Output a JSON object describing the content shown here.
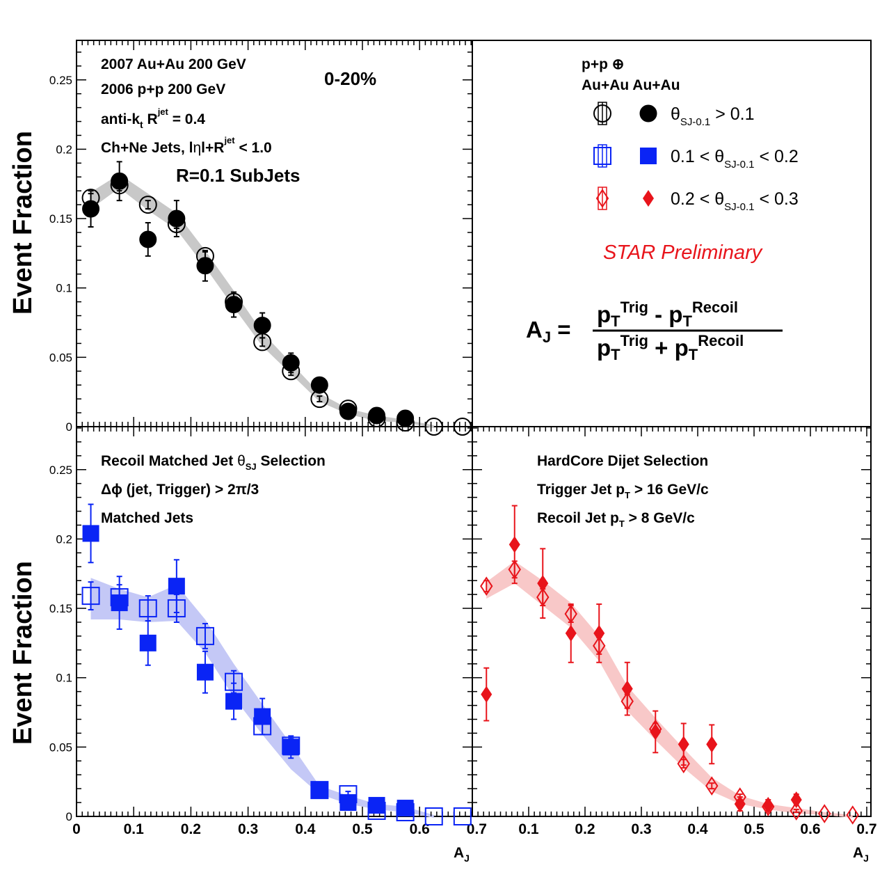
{
  "annotations": {
    "tl_line1": "2007 Au+Au 200 GeV",
    "tl_line2": "2006 p+p 200 GeV",
    "tl_centrality": "0-20%",
    "tl_line3_a": "anti-k",
    "tl_line3_sub": "t",
    "tl_line3_b": " R",
    "tl_line3_sup": "jet",
    "tl_line3_c": " = 0.4",
    "tl_line4_a": "Ch+Ne Jets, l",
    "tl_line4_eta": "η",
    "tl_line4_b": "l+R",
    "tl_line4_sup": "jet",
    "tl_line4_c": " < 1.0",
    "tl_subjets": "R=0.1 SubJets",
    "bl_line1_a": "Recoil Matched Jet  ",
    "bl_line1_theta": "θ",
    "bl_line1_sub": "SJ",
    "bl_line1_b": " Selection",
    "bl_line2": "Δϕ (jet, Trigger) > 2π/3",
    "bl_line3": "Matched Jets",
    "br_line1": "HardCore Dijet Selection",
    "br_line2_a": "Trigger Jet p",
    "br_line2_sub": "T",
    "br_line2_b": " > 16  GeV/c",
    "br_line3_a": "Recoil Jet p",
    "br_line3_sub": "T",
    "br_line3_b": " >  8  GeV/c"
  },
  "legend": {
    "head_line1": "p+p ⊕",
    "head_line2": "Au+Au Au+Au",
    "entry1_theta": "θ",
    "entry1_sub": "SJ-0.1",
    "entry1_tail": " > 0.1",
    "entry2_head": "0.1 < θ",
    "entry2_sub": "SJ-0.1",
    "entry2_tail": " < 0.2",
    "entry3_head": "0.2 < θ",
    "entry3_sub": "SJ-0.1",
    "entry3_tail": " < 0.3",
    "preliminary": "STAR Preliminary"
  },
  "formula": {
    "lhs": "A",
    "lhs_sub": "J",
    "eq": " =",
    "num_p1": "p",
    "num_sub1": "T",
    "num_sup1": "Trig",
    "num_op": " - ",
    "num_p2": "p",
    "num_sub2": "T",
    "num_sup2": "Recoil",
    "den_p1": "p",
    "den_sub1": "T",
    "den_sup1": "Trig",
    "den_op": " + ",
    "den_p2": "p",
    "den_sub2": "T",
    "den_sup2": "Recoil"
  },
  "axes": {
    "ylabel": "Event Fraction",
    "xlabel": "A",
    "xlabel_sub": "J",
    "yticks": [
      "0",
      "0.05",
      "0.1",
      "0.15",
      "0.2",
      "0.25"
    ],
    "xticks_left": [
      "0",
      "0.1",
      "0.2",
      "0.3",
      "0.4",
      "0.5",
      "0.6",
      "0.7"
    ],
    "xticks_right": [
      "0.1",
      "0.2",
      "0.3",
      "0.4",
      "0.5",
      "0.6",
      "0.7"
    ]
  },
  "colors": {
    "black": "#000000",
    "blue": "#0a24f5",
    "red": "#e8141b",
    "band_gray": "#c8c8c8",
    "band_blue": "#c4c8f6",
    "band_red": "#f8c8c8"
  },
  "chart_data": [
    {
      "type": "scatter",
      "panel": "top-left",
      "title": "",
      "xlabel": "",
      "ylabel": "Event Fraction",
      "xlim": [
        0,
        0.7
      ],
      "ylim": [
        0,
        0.28
      ],
      "color": "black",
      "band": {
        "x": [
          0.025,
          0.075,
          0.125,
          0.175,
          0.225,
          0.275,
          0.325,
          0.375,
          0.425,
          0.475,
          0.525,
          0.575,
          0.625
        ],
        "center": [
          0.163,
          0.177,
          0.162,
          0.148,
          0.121,
          0.092,
          0.063,
          0.042,
          0.021,
          0.011,
          0.006,
          0.004,
          0.0
        ],
        "half_width": [
          0.006,
          0.005,
          0.006,
          0.006,
          0.006,
          0.006,
          0.005,
          0.004,
          0.003,
          0.002,
          0.002,
          0.001,
          0.001
        ]
      },
      "series": [
        {
          "name": "p+p ⊕ Au+Au",
          "marker": "open-circle",
          "x": [
            0.025,
            0.075,
            0.125,
            0.175,
            0.225,
            0.275,
            0.325,
            0.375,
            0.425,
            0.475,
            0.525,
            0.575,
            0.625,
            0.675
          ],
          "y": [
            0.165,
            0.174,
            0.16,
            0.146,
            0.123,
            0.09,
            0.061,
            0.04,
            0.02,
            0.013,
            0.006,
            0.003,
            0.0,
            0.0
          ],
          "err": [
            0.003,
            0.004,
            0.003,
            0.003,
            0.003,
            0.003,
            0.003,
            0.003,
            0.002,
            0.002,
            0.001,
            0.001,
            0.0,
            0.0
          ]
        },
        {
          "name": "Au+Au",
          "marker": "filled-circle",
          "x": [
            0.025,
            0.075,
            0.125,
            0.175,
            0.225,
            0.275,
            0.325,
            0.375,
            0.425,
            0.475,
            0.525,
            0.575
          ],
          "y": [
            0.157,
            0.177,
            0.135,
            0.15,
            0.116,
            0.088,
            0.073,
            0.046,
            0.03,
            0.011,
            0.008,
            0.006
          ],
          "err": [
            0.013,
            0.014,
            0.012,
            0.013,
            0.011,
            0.009,
            0.009,
            0.007,
            0.004,
            0.003,
            0.002,
            0.002
          ]
        }
      ]
    },
    {
      "type": "scatter",
      "panel": "bottom-left",
      "title": "",
      "xlabel": "A_J",
      "ylabel": "Event Fraction",
      "xlim": [
        0,
        0.7
      ],
      "ylim": [
        0,
        0.28
      ],
      "color": "blue",
      "band": {
        "x": [
          0.025,
          0.075,
          0.125,
          0.175,
          0.225,
          0.275,
          0.325,
          0.375,
          0.425,
          0.475,
          0.525,
          0.575,
          0.625
        ],
        "center": [
          0.157,
          0.153,
          0.149,
          0.154,
          0.13,
          0.098,
          0.07,
          0.043,
          0.019,
          0.012,
          0.007,
          0.005,
          0.0
        ],
        "half_width": [
          0.015,
          0.011,
          0.009,
          0.013,
          0.012,
          0.012,
          0.011,
          0.009,
          0.003,
          0.003,
          0.002,
          0.002,
          0.001
        ]
      },
      "series": [
        {
          "name": "p+p ⊕ Au+Au, 0.1 < θSJ-0.1 < 0.2",
          "marker": "open-square",
          "x": [
            0.025,
            0.075,
            0.125,
            0.175,
            0.225,
            0.275,
            0.325,
            0.375,
            0.425,
            0.475,
            0.525,
            0.575,
            0.625,
            0.675
          ],
          "y": [
            0.159,
            0.158,
            0.15,
            0.15,
            0.13,
            0.097,
            0.065,
            0.051,
            0.019,
            0.016,
            0.004,
            0.003,
            0.0,
            0.0
          ],
          "err": [
            0.01,
            0.009,
            0.009,
            0.01,
            0.009,
            0.008,
            0.006,
            0.005,
            0.002,
            0.002,
            0.001,
            0.001,
            0.0,
            0.0
          ]
        },
        {
          "name": "Au+Au, 0.1 < θSJ-0.1 < 0.2",
          "marker": "filled-square",
          "x": [
            0.025,
            0.075,
            0.125,
            0.175,
            0.225,
            0.275,
            0.325,
            0.375,
            0.425,
            0.475,
            0.525,
            0.575
          ],
          "y": [
            0.204,
            0.154,
            0.125,
            0.166,
            0.104,
            0.083,
            0.072,
            0.05,
            0.019,
            0.01,
            0.008,
            0.006
          ],
          "err": [
            0.021,
            0.019,
            0.016,
            0.019,
            0.015,
            0.013,
            0.013,
            0.008,
            0.003,
            0.003,
            0.002,
            0.002
          ]
        }
      ]
    },
    {
      "type": "scatter",
      "panel": "bottom-right",
      "title": "",
      "xlabel": "A_J",
      "ylabel": "",
      "xlim": [
        0,
        0.7
      ],
      "ylim": [
        0,
        0.28
      ],
      "color": "red",
      "band": {
        "x": [
          0.025,
          0.075,
          0.125,
          0.175,
          0.225,
          0.275,
          0.325,
          0.375,
          0.425,
          0.475,
          0.525,
          0.575,
          0.625,
          0.675
        ],
        "center": [
          0.163,
          0.176,
          0.161,
          0.145,
          0.121,
          0.085,
          0.063,
          0.042,
          0.023,
          0.012,
          0.007,
          0.004,
          0.002,
          0.0
        ],
        "half_width": [
          0.006,
          0.008,
          0.009,
          0.009,
          0.009,
          0.009,
          0.008,
          0.007,
          0.005,
          0.003,
          0.002,
          0.002,
          0.001,
          0.001
        ]
      },
      "series": [
        {
          "name": "p+p ⊕ Au+Au, 0.2 < θSJ-0.1 < 0.3",
          "marker": "open-diamond",
          "x": [
            0.025,
            0.075,
            0.125,
            0.175,
            0.225,
            0.275,
            0.325,
            0.375,
            0.425,
            0.475,
            0.525,
            0.575,
            0.625,
            0.675
          ],
          "y": [
            0.166,
            0.178,
            0.158,
            0.146,
            0.123,
            0.083,
            0.063,
            0.038,
            0.022,
            0.014,
            0.007,
            0.004,
            0.002,
            0.001
          ],
          "err": [
            0.004,
            0.006,
            0.006,
            0.006,
            0.006,
            0.005,
            0.004,
            0.003,
            0.002,
            0.002,
            0.001,
            0.001,
            0.0,
            0.0
          ]
        },
        {
          "name": "Au+Au, 0.2 < θSJ-0.1 < 0.3",
          "marker": "filled-diamond",
          "x": [
            0.025,
            0.075,
            0.125,
            0.175,
            0.225,
            0.275,
            0.325,
            0.375,
            0.425,
            0.475,
            0.525,
            0.575
          ],
          "y": [
            0.088,
            0.196,
            0.168,
            0.132,
            0.132,
            0.092,
            0.061,
            0.052,
            0.052,
            0.009,
            0.008,
            0.012
          ],
          "err": [
            0.019,
            0.028,
            0.025,
            0.021,
            0.021,
            0.019,
            0.015,
            0.015,
            0.014,
            0.005,
            0.004,
            0.004
          ]
        }
      ]
    }
  ]
}
